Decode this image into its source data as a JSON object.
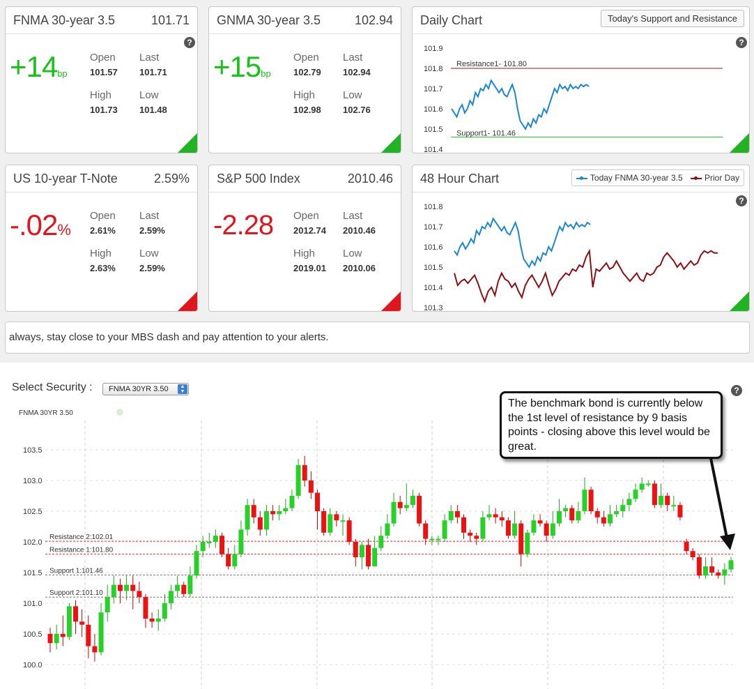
{
  "cards": [
    {
      "title": "FNMA 30-year 3.5",
      "value": "101.71",
      "change": "+14",
      "change_unit": "bp",
      "dir": "up",
      "open_label": "Open",
      "open": "101.57",
      "last_label": "Last",
      "last": "101.71",
      "high_label": "High",
      "high": "101.73",
      "low_label": "Low",
      "low": "101.48"
    },
    {
      "title": "GNMA 30-year 3.5",
      "value": "102.94",
      "change": "+15",
      "change_unit": "bp",
      "dir": "up",
      "open_label": "Open",
      "open": "102.79",
      "last_label": "Last",
      "last": "102.94",
      "high_label": "High",
      "high": "102.98",
      "low_label": "Low",
      "low": "102.76"
    },
    {
      "title": "US 10-year T-Note",
      "value": "2.59%",
      "change": "-.02",
      "change_unit": "%",
      "dir": "down",
      "open_label": "Open",
      "open": "2.61%",
      "last_label": "Last",
      "last": "2.59%",
      "high_label": "High",
      "high": "2.63%",
      "low_label": "Low",
      "low": "2.59%"
    },
    {
      "title": "S&P 500 Index",
      "value": "2010.46",
      "change": "-2.28",
      "change_unit": "",
      "dir": "down",
      "open_label": "Open",
      "open": "2012.74",
      "last_label": "Last",
      "last": "2010.46",
      "high_label": "High",
      "high": "2019.01",
      "low_label": "Low",
      "low": "2010.06"
    }
  ],
  "help_label": "?",
  "daily_chart": {
    "title": "Daily Chart",
    "button": "Today's Support and Resistance",
    "resistance_label": "Resistance1- 101.80",
    "support_label": "Support1- 101.46",
    "resistance": 101.8,
    "support": 101.46,
    "y_ticks": [
      "101.9",
      "101.8",
      "101.7",
      "101.6",
      "101.5",
      "101.4"
    ],
    "ylim": [
      101.4,
      101.9
    ],
    "series": [
      101.6,
      101.58,
      101.56,
      101.6,
      101.62,
      101.58,
      101.6,
      101.64,
      101.62,
      101.68,
      101.66,
      101.7,
      101.69,
      101.72,
      101.7,
      101.74,
      101.72,
      101.7,
      101.68,
      101.7,
      101.67,
      101.66,
      101.69,
      101.72,
      101.68,
      101.6,
      101.54,
      101.52,
      101.5,
      101.53,
      101.51,
      101.55,
      101.53,
      101.57,
      101.56,
      101.6,
      101.58,
      101.62,
      101.66,
      101.7,
      101.68,
      101.72,
      101.7,
      101.71,
      101.69,
      101.72,
      101.7,
      101.71,
      101.7,
      101.72,
      101.71,
      101.72,
      101.71
    ]
  },
  "hour48_chart": {
    "title": "48 Hour Chart",
    "legend_today": "Today FNMA 30-year 3.5",
    "legend_prior": "Prior Day",
    "color_today": "#1a87cf",
    "color_prior": "#8b0f12",
    "y_ticks": [
      "101.8",
      "101.7",
      "101.6",
      "101.5",
      "101.4",
      "101.3"
    ],
    "ylim": [
      101.3,
      101.8
    ],
    "today": [
      101.58,
      101.56,
      101.6,
      101.62,
      101.59,
      101.61,
      101.64,
      101.62,
      101.68,
      101.66,
      101.7,
      101.69,
      101.72,
      101.7,
      101.74,
      101.72,
      101.7,
      101.68,
      101.7,
      101.67,
      101.66,
      101.69,
      101.72,
      101.68,
      101.6,
      101.54,
      101.52,
      101.5,
      101.53,
      101.51,
      101.55,
      101.53,
      101.57,
      101.56,
      101.6,
      101.58,
      101.62,
      101.66,
      101.7,
      101.68,
      101.72,
      101.7,
      101.71,
      101.69,
      101.72,
      101.7,
      101.71,
      101.7,
      101.72,
      101.71
    ],
    "prior": [
      101.47,
      101.41,
      101.43,
      101.44,
      101.42,
      101.44,
      101.46,
      101.42,
      101.37,
      101.33,
      101.38,
      101.4,
      101.36,
      101.43,
      101.47,
      101.44,
      101.43,
      101.4,
      101.42,
      101.38,
      101.35,
      101.41,
      101.44,
      101.46,
      101.43,
      101.4,
      101.43,
      101.47,
      101.41,
      101.36,
      101.39,
      101.43,
      101.45,
      101.47,
      101.46,
      101.49,
      101.48,
      101.51,
      101.5,
      101.55,
      101.58,
      101.4,
      101.49,
      101.48,
      101.5,
      101.52,
      101.49,
      101.5,
      101.53,
      101.5,
      101.47,
      101.45,
      101.43,
      101.45,
      101.47,
      101.44,
      101.43,
      101.47,
      101.46,
      101.47,
      101.5,
      101.51,
      101.55,
      101.57,
      101.55,
      101.53,
      101.5,
      101.52,
      101.49,
      101.51,
      101.53,
      101.51,
      101.52,
      101.56,
      101.58,
      101.57,
      101.58,
      101.57,
      101.57
    ]
  },
  "message": "always, stay close to your MBS dash and pay attention to your alerts.",
  "selector": {
    "label": "Select Security :",
    "selected": "FNMA 30YR 3.50"
  },
  "annotation": "The benchmark bond is currently below the 1st level of resistance by 9 basis points - closing above this level would be great.",
  "chart_data": {
    "type": "candlestick",
    "series_label": "FNMA 30YR 3.50",
    "ylim": [
      100.0,
      103.6
    ],
    "y_ticks": [
      "103.5",
      "103.0",
      "102.5",
      "102.0",
      "101.5",
      "101.0",
      "100.5",
      "100.0"
    ],
    "lines": [
      {
        "label": "Resistance 2:102.01",
        "value": 102.01,
        "color": "#e03030"
      },
      {
        "label": "Resistance 1:101.80",
        "value": 101.8,
        "color": "#e03030"
      },
      {
        "label": "Support 1:101.46",
        "value": 101.46,
        "color": "#777777"
      },
      {
        "label": "Support 2:101.10",
        "value": 101.1,
        "color": "#777777"
      }
    ],
    "candles": [
      [
        100.5,
        100.35,
        100.6,
        100.2
      ],
      [
        100.35,
        100.5,
        100.65,
        100.25
      ],
      [
        100.5,
        100.45,
        100.8,
        100.3
      ],
      [
        100.45,
        100.95,
        101.0,
        100.4
      ],
      [
        100.95,
        100.7,
        101.05,
        100.5
      ],
      [
        100.7,
        100.65,
        100.9,
        100.45
      ],
      [
        100.65,
        100.3,
        100.8,
        100.1
      ],
      [
        100.3,
        100.2,
        100.5,
        100.05
      ],
      [
        100.2,
        100.85,
        101.0,
        100.15
      ],
      [
        100.85,
        101.1,
        101.3,
        100.7
      ],
      [
        101.1,
        101.3,
        101.45,
        101.0
      ],
      [
        101.3,
        101.2,
        101.4,
        101.0
      ],
      [
        101.2,
        101.3,
        101.45,
        101.05
      ],
      [
        101.3,
        101.2,
        101.45,
        100.9
      ],
      [
        101.2,
        101.1,
        101.35,
        101.0
      ],
      [
        101.1,
        100.75,
        101.15,
        100.6
      ],
      [
        100.75,
        100.7,
        100.85,
        100.6
      ],
      [
        100.7,
        100.75,
        100.9,
        100.55
      ],
      [
        100.75,
        101.0,
        101.15,
        100.7
      ],
      [
        101.0,
        101.2,
        101.3,
        100.9
      ],
      [
        101.2,
        101.3,
        101.45,
        101.1
      ],
      [
        101.3,
        101.15,
        101.35,
        101.1
      ],
      [
        101.15,
        101.45,
        101.6,
        101.1
      ],
      [
        101.45,
        101.85,
        101.95,
        101.4
      ],
      [
        101.85,
        102.0,
        102.1,
        101.75
      ],
      [
        102.0,
        102.0,
        102.15,
        101.9
      ],
      [
        102.0,
        102.1,
        102.2,
        101.9
      ],
      [
        102.1,
        101.8,
        102.15,
        101.75
      ],
      [
        101.8,
        101.6,
        101.9,
        101.55
      ],
      [
        101.6,
        101.8,
        101.95,
        101.55
      ],
      [
        101.8,
        102.2,
        102.35,
        101.75
      ],
      [
        102.2,
        102.6,
        102.7,
        102.1
      ],
      [
        102.6,
        102.4,
        102.7,
        102.3
      ],
      [
        102.4,
        102.2,
        102.5,
        102.1
      ],
      [
        102.2,
        102.5,
        102.6,
        102.1
      ],
      [
        102.5,
        102.45,
        102.6,
        102.35
      ],
      [
        102.45,
        102.5,
        102.6,
        102.35
      ],
      [
        102.5,
        102.55,
        102.7,
        102.45
      ],
      [
        102.55,
        102.75,
        102.85,
        102.5
      ],
      [
        102.75,
        103.25,
        103.35,
        102.7
      ],
      [
        103.25,
        103.0,
        103.4,
        102.9
      ],
      [
        103.0,
        102.8,
        103.15,
        102.7
      ],
      [
        102.8,
        102.5,
        102.85,
        102.2
      ],
      [
        102.5,
        102.15,
        102.55,
        102.1
      ],
      [
        102.15,
        102.45,
        102.55,
        102.1
      ],
      [
        102.45,
        102.35,
        102.5,
        102.25
      ],
      [
        102.35,
        102.35,
        102.45,
        102.1
      ],
      [
        102.35,
        102.0,
        102.4,
        101.95
      ],
      [
        102.0,
        101.75,
        102.05,
        101.6
      ],
      [
        101.75,
        101.95,
        102.0,
        101.55
      ],
      [
        101.95,
        101.6,
        102.05,
        101.55
      ],
      [
        101.6,
        101.9,
        102.1,
        101.6
      ],
      [
        101.9,
        102.1,
        102.25,
        101.85
      ],
      [
        102.1,
        102.3,
        102.45,
        102.05
      ],
      [
        102.3,
        102.65,
        102.8,
        102.25
      ],
      [
        102.65,
        102.55,
        102.75,
        102.45
      ],
      [
        102.55,
        102.6,
        102.95,
        102.5
      ],
      [
        102.6,
        102.75,
        102.85,
        102.55
      ],
      [
        102.75,
        102.3,
        102.8,
        102.25
      ],
      [
        102.3,
        102.05,
        102.35,
        101.95
      ],
      [
        102.05,
        102.05,
        102.1,
        101.95
      ],
      [
        102.05,
        102.05,
        102.1,
        101.95
      ],
      [
        102.05,
        102.35,
        102.45,
        102.0
      ],
      [
        102.35,
        102.5,
        102.6,
        102.3
      ],
      [
        102.5,
        102.4,
        102.6,
        102.3
      ],
      [
        102.4,
        102.15,
        102.45,
        102.05
      ],
      [
        102.15,
        102.1,
        102.2,
        102.0
      ],
      [
        102.1,
        102.05,
        102.15,
        101.95
      ],
      [
        102.05,
        102.4,
        102.5,
        102.0
      ],
      [
        102.4,
        102.45,
        102.6,
        102.35
      ],
      [
        102.45,
        102.4,
        102.55,
        102.3
      ],
      [
        102.4,
        102.35,
        102.5,
        102.25
      ],
      [
        102.35,
        102.1,
        102.4,
        102.05
      ],
      [
        102.1,
        102.3,
        102.5,
        102.05
      ],
      [
        102.3,
        101.8,
        102.35,
        101.6
      ],
      [
        101.8,
        102.15,
        102.2,
        101.75
      ],
      [
        102.15,
        102.35,
        102.45,
        102.1
      ],
      [
        102.35,
        102.3,
        102.45,
        102.25
      ],
      [
        102.3,
        102.1,
        102.35,
        102.0
      ],
      [
        102.1,
        102.3,
        102.5,
        102.05
      ],
      [
        102.3,
        102.5,
        102.7,
        102.25
      ],
      [
        102.5,
        102.55,
        102.6,
        102.4
      ],
      [
        102.55,
        102.35,
        102.6,
        102.3
      ],
      [
        102.35,
        102.5,
        102.65,
        102.3
      ],
      [
        102.5,
        102.85,
        103.05,
        102.45
      ],
      [
        102.85,
        102.5,
        102.9,
        102.45
      ],
      [
        102.5,
        102.4,
        102.55,
        102.3
      ],
      [
        102.4,
        102.3,
        102.5,
        102.25
      ],
      [
        102.3,
        102.45,
        102.6,
        102.25
      ],
      [
        102.45,
        102.5,
        102.6,
        102.4
      ],
      [
        102.5,
        102.6,
        102.7,
        102.4
      ],
      [
        102.6,
        102.7,
        102.8,
        102.5
      ],
      [
        102.7,
        102.85,
        102.95,
        102.65
      ],
      [
        102.85,
        102.95,
        103.05,
        102.8
      ],
      [
        102.95,
        102.95,
        103.0,
        102.9
      ],
      [
        102.95,
        102.6,
        103.0,
        102.55
      ],
      [
        102.6,
        102.75,
        102.95,
        102.55
      ],
      [
        102.75,
        102.6,
        102.8,
        102.5
      ],
      [
        102.6,
        102.6,
        102.75,
        102.5
      ],
      [
        102.6,
        102.4,
        102.65,
        102.35
      ],
      [
        102.0,
        101.85,
        102.05,
        101.8
      ],
      [
        101.85,
        101.75,
        101.9,
        101.7
      ],
      [
        101.75,
        101.45,
        101.8,
        101.4
      ],
      [
        101.45,
        101.6,
        101.75,
        101.4
      ],
      [
        101.6,
        101.5,
        101.75,
        101.45
      ],
      [
        101.5,
        101.45,
        101.55,
        101.4
      ],
      [
        101.45,
        101.55,
        101.65,
        101.3
      ],
      [
        101.55,
        101.7,
        101.75,
        101.5
      ]
    ]
  }
}
